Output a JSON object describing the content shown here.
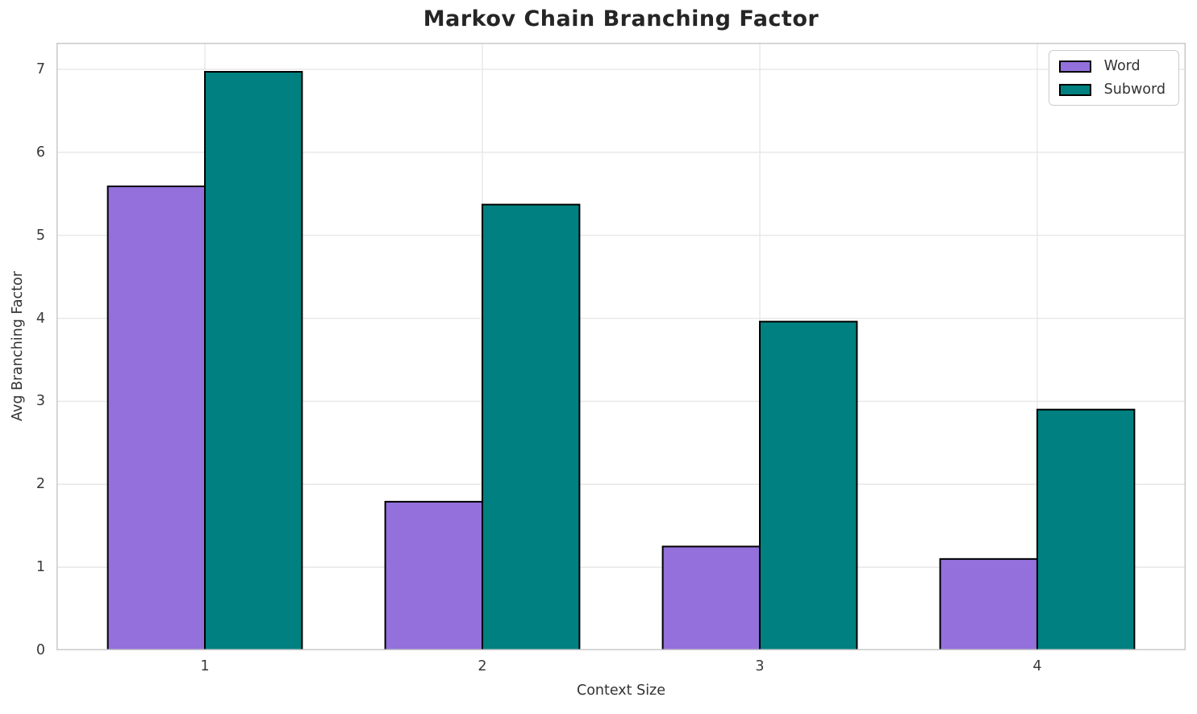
{
  "title": "Markov Chain Branching Factor",
  "chart_data": {
    "type": "bar",
    "title": "Markov Chain Branching Factor",
    "xlabel": "Context Size",
    "ylabel": "Avg Branching Factor",
    "categories": [
      "1",
      "2",
      "3",
      "4"
    ],
    "series": [
      {
        "name": "Word",
        "color": "#9370DB",
        "values": [
          5.59,
          1.79,
          1.25,
          1.1
        ]
      },
      {
        "name": "Subword",
        "color": "#008080",
        "values": [
          6.97,
          5.37,
          3.96,
          2.9
        ]
      }
    ],
    "y_ticks": [
      "0",
      "1",
      "2",
      "3",
      "4",
      "5",
      "6",
      "7"
    ],
    "ylim": [
      0,
      7.32
    ],
    "bar_width": 0.35,
    "bar_edge_color": "#000000",
    "grid": true,
    "legend_position": "upper right",
    "legend_labels": [
      "Word",
      "Subword"
    ]
  },
  "colors": {
    "background": "#ffffff",
    "gridline": "#e7e7e7",
    "spine": "#cacaca",
    "title_text": "#252525",
    "tick_text": "#3a3a3a",
    "word_fill": "#9370DB",
    "subword_fill": "#008080",
    "bar_edge": "#000000"
  }
}
